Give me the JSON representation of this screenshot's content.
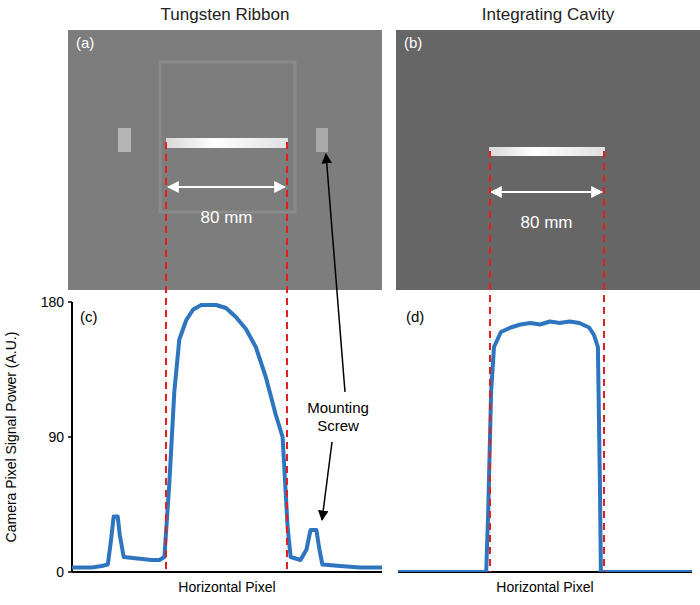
{
  "figure": {
    "column_titles": [
      "Tungsten Ribbon",
      "Integrating Cavity"
    ],
    "image_panels": [
      {
        "panel_label": "(a)",
        "annotation": "80 mm"
      },
      {
        "panel_label": "(b)",
        "annotation": "80 mm"
      }
    ],
    "callout": "Mounting Screw"
  },
  "chart_data": [
    {
      "type": "line",
      "panel_label": "(c)",
      "ylabel": "Camera Pixel Signal Power (A.U.)",
      "xlabel": "Horizontal Pixel",
      "x": [
        0,
        20,
        30,
        36,
        39,
        42,
        46,
        48,
        52,
        80,
        88,
        93,
        98,
        103,
        108,
        115,
        122,
        130,
        145,
        155,
        165,
        175,
        185,
        195,
        205,
        212,
        217,
        220,
        230,
        236,
        240,
        246,
        249,
        252,
        270,
        290,
        312
      ],
      "values": [
        3,
        3,
        4,
        5,
        20,
        37,
        37,
        25,
        10,
        8,
        8,
        10,
        60,
        120,
        155,
        168,
        175,
        178,
        178,
        176,
        170,
        162,
        150,
        130,
        105,
        90,
        30,
        10,
        8,
        15,
        28,
        28,
        15,
        5,
        4,
        3,
        3
      ],
      "color": "#2e75c0",
      "xlim": [
        0,
        312
      ],
      "ylim": [
        0,
        180
      ],
      "yticks": [
        0,
        90,
        180
      ],
      "tick_labels": "y"
    },
    {
      "type": "line",
      "panel_label": "(d)",
      "xlabel": "Horizontal Pixel",
      "x": [
        0,
        90,
        92,
        95,
        98,
        105,
        115,
        125,
        135,
        145,
        155,
        165,
        175,
        185,
        195,
        200,
        204,
        206,
        207,
        300
      ],
      "values": [
        0,
        0,
        40,
        120,
        150,
        160,
        163,
        165,
        166,
        165,
        167,
        166,
        167,
        166,
        163,
        158,
        150,
        60,
        0,
        0
      ],
      "color": "#2e75c0",
      "xlim": [
        0,
        300
      ],
      "ylim": [
        0,
        180
      ],
      "tick_labels": false
    }
  ]
}
